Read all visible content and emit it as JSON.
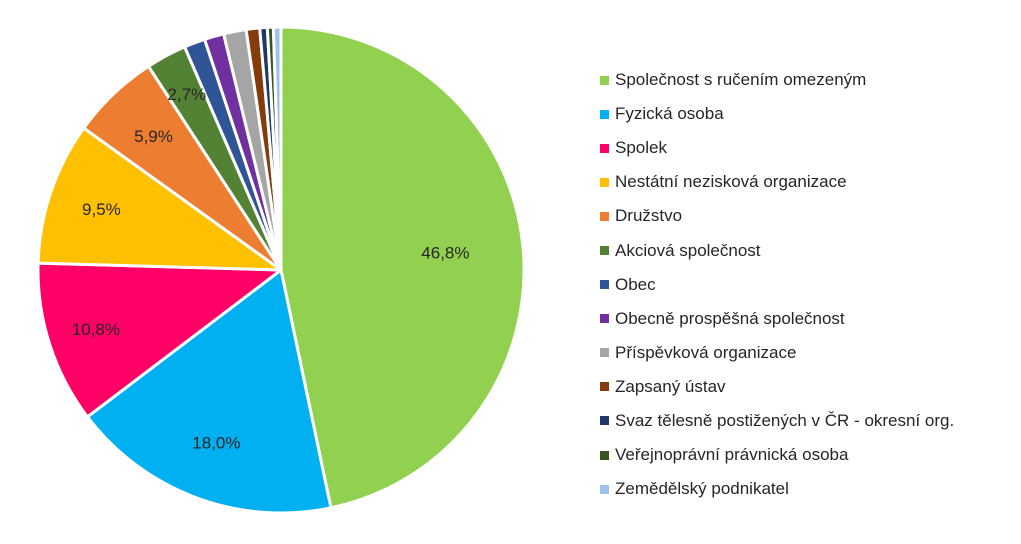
{
  "chart_data": {
    "type": "pie",
    "title": "",
    "legend_position": "right",
    "categories": [
      "Společnost s ručením omezeným",
      "Fyzická osoba",
      "Spolek",
      "Nestátní nezisková organizace",
      "Družstvo",
      "Akciová společnost",
      "Obec",
      "Obecně prospěšná společnost",
      "Příspěvková organizace",
      "Zapsaný ústav",
      "Svaz tělesně postižených v ČR - okresní org.",
      "Veřejnoprávní právnická osoba",
      "Zemědělský podnikatel"
    ],
    "values": [
      46.8,
      18.0,
      10.8,
      9.5,
      5.9,
      2.7,
      1.4,
      1.3,
      1.5,
      0.9,
      0.5,
      0.4,
      0.5
    ],
    "data_labels": [
      "46,8%",
      "18,0%",
      "10,8%",
      "9,5%",
      "5,9%",
      "2,7%",
      "",
      "",
      "",
      "",
      "",
      "",
      ""
    ],
    "colors": [
      "#92D050",
      "#00B0F0",
      "#FF0066",
      "#FFC000",
      "#ED7D31",
      "#548235",
      "#2F5597",
      "#7030A0",
      "#A5A5A5",
      "#843C0C",
      "#203864",
      "#375623",
      "#9DC3E6"
    ]
  }
}
